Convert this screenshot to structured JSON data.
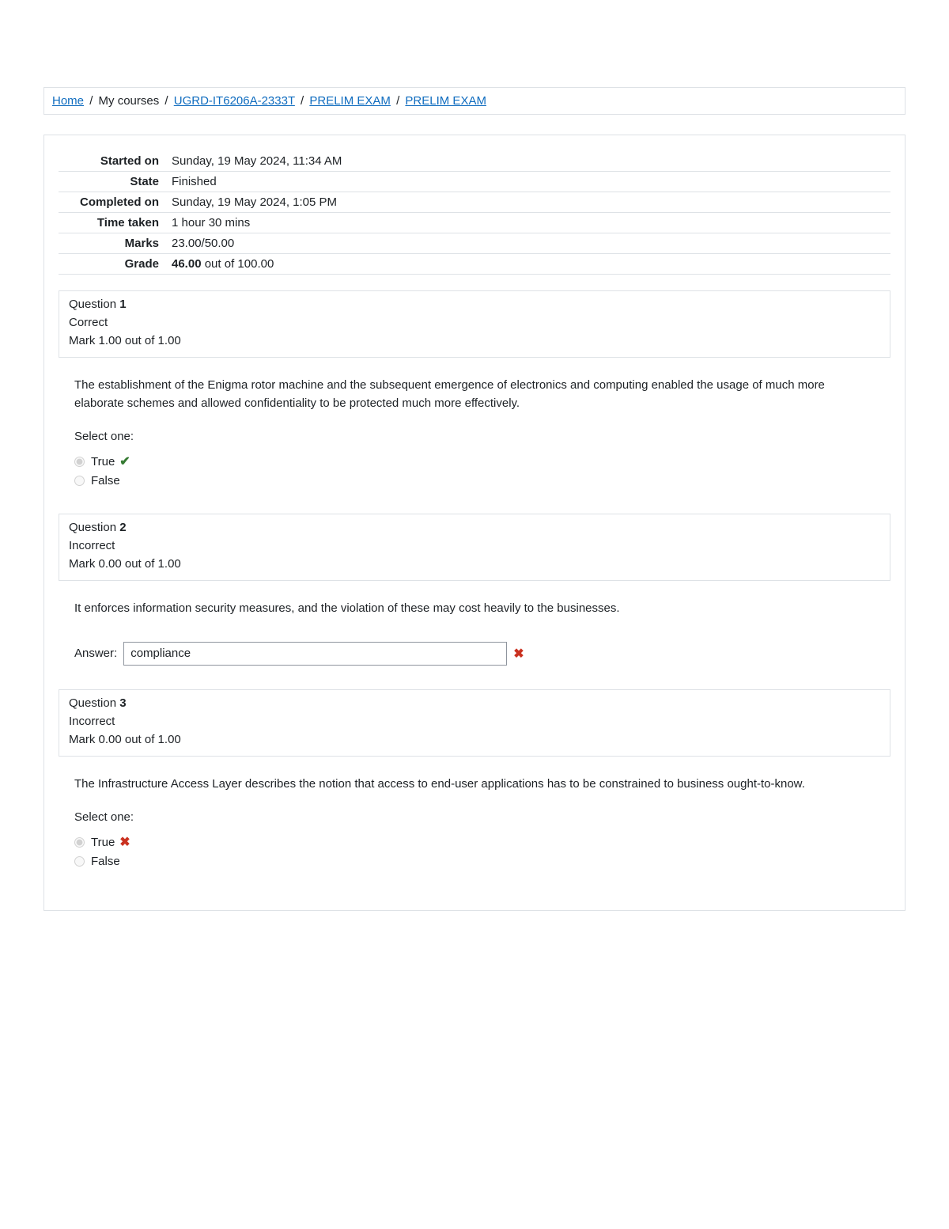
{
  "breadcrumb": {
    "home": "Home",
    "my_courses": "My courses",
    "course_code": "UGRD-IT6206A-2333T",
    "exam_cat": "PRELIM EXAM",
    "exam_name": "PRELIM EXAM",
    "sep": "/"
  },
  "summary": {
    "rows": [
      {
        "label": "Started on",
        "value": "Sunday, 19 May 2024, 11:34 AM"
      },
      {
        "label": "State",
        "value": "Finished"
      },
      {
        "label": "Completed on",
        "value": "Sunday, 19 May 2024, 1:05 PM"
      },
      {
        "label": "Time taken",
        "value": "1 hour 30 mins"
      },
      {
        "label": "Marks",
        "value": "23.00/50.00"
      }
    ],
    "grade_label": "Grade",
    "grade_bold": "46.00",
    "grade_rest": " out of 100.00"
  },
  "questions": [
    {
      "num_prefix": "Question ",
      "num": "1",
      "state": "Correct",
      "mark": "Mark 1.00 out of 1.00",
      "type": "tf",
      "text": "The establishment of the Enigma rotor machine and the subsequent emergence of electronics and computing enabled the usage of much more elaborate schemes and allowed confidentiality to be protected much more effectively.",
      "select_one": "Select one:",
      "opts": {
        "true": "True",
        "false": "False"
      },
      "selected": "true",
      "correct_icon": "check"
    },
    {
      "num_prefix": "Question ",
      "num": "2",
      "state": "Incorrect",
      "mark": "Mark 0.00 out of 1.00",
      "type": "short",
      "text": "It enforces information security measures, and the violation of these may cost heavily to the businesses.",
      "answer_label": "Answer:",
      "answer_value": "compliance",
      "correct_icon": "x"
    },
    {
      "num_prefix": "Question ",
      "num": "3",
      "state": "Incorrect",
      "mark": "Mark 0.00 out of 1.00",
      "type": "tf",
      "text": "The Infrastructure Access Layer describes the notion that access to end-user applications has to be constrained to business ought-to-know.",
      "select_one": "Select one:",
      "opts": {
        "true": "True",
        "false": "False"
      },
      "selected": "true",
      "correct_icon": "x"
    }
  ],
  "icons": {
    "check": "✔",
    "x": "✖"
  }
}
